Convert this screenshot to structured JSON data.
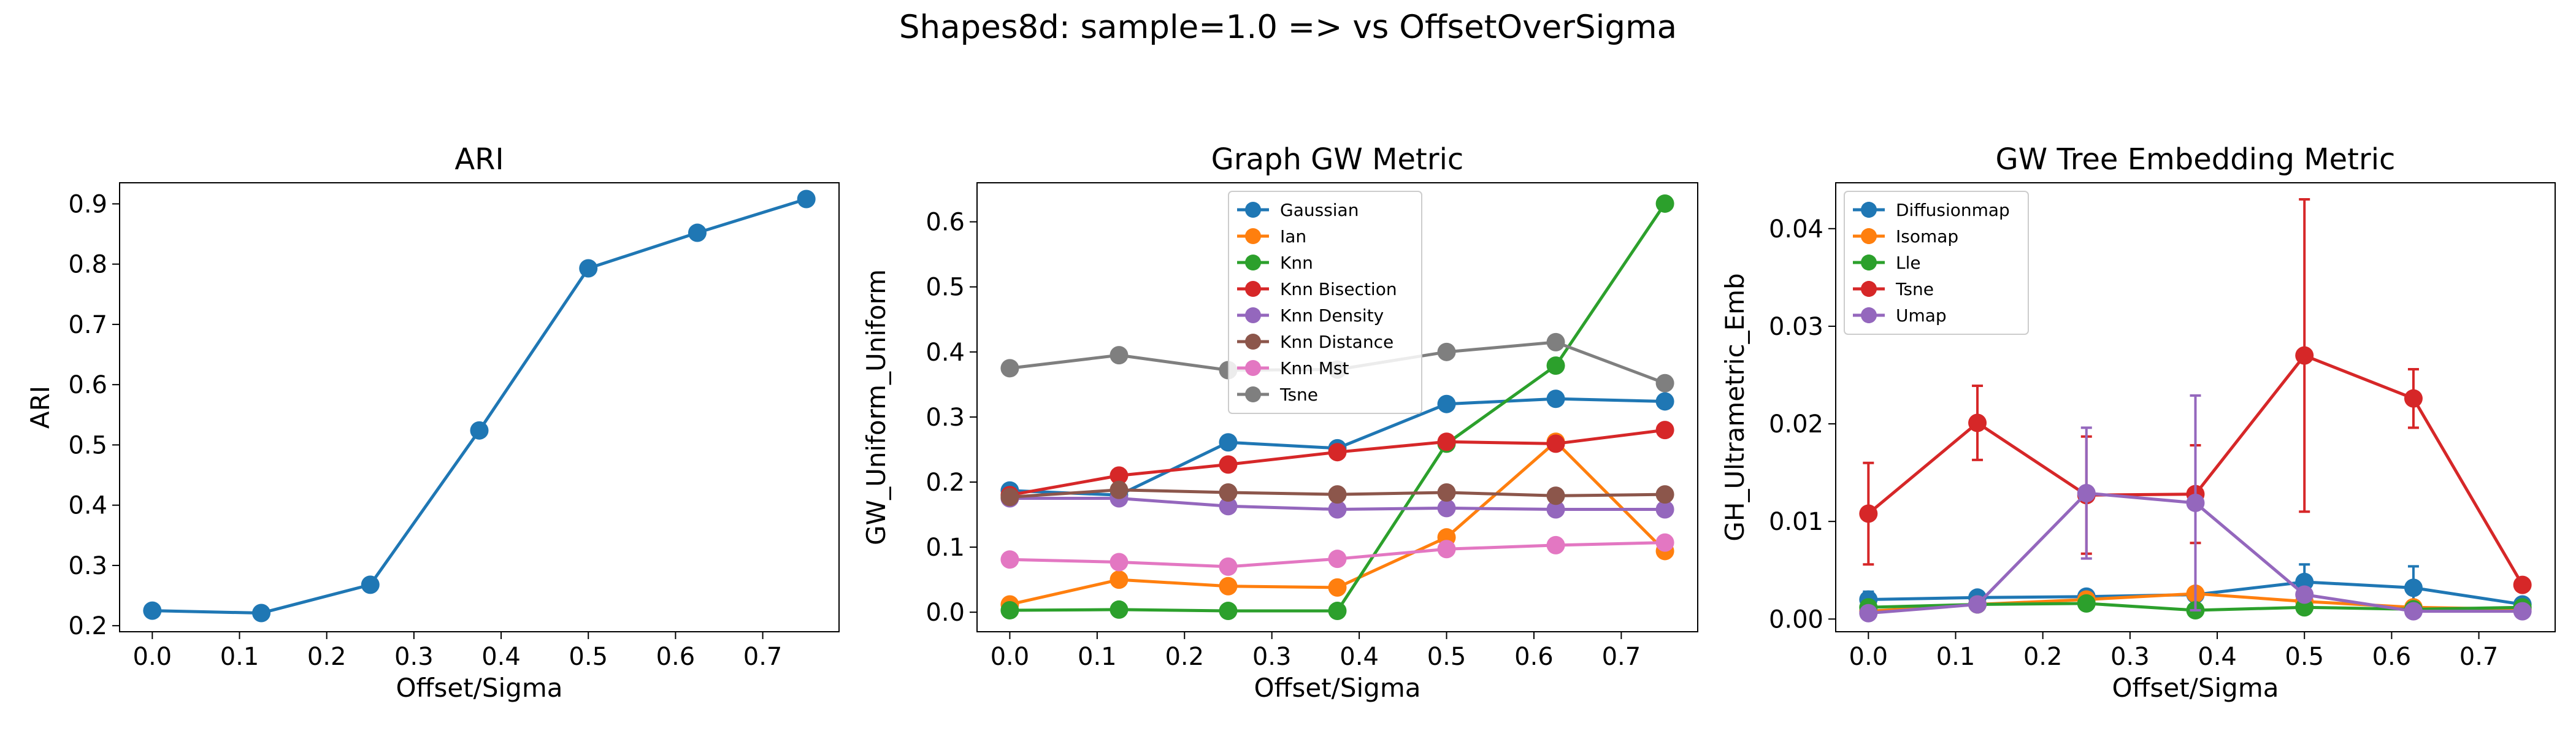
{
  "suptitle": "Shapes8d: sample=1.0 => vs OffsetOverSigma",
  "colors": {
    "tab_blue": "#1f77b4",
    "tab_orange": "#ff7f0e",
    "tab_green": "#2ca02c",
    "tab_red": "#d62728",
    "tab_purple": "#9467bd",
    "tab_brown": "#8c564b",
    "tab_pink": "#e377c2",
    "tab_gray": "#7f7f7f"
  },
  "chart_data": [
    {
      "type": "line",
      "title": "ARI",
      "xlabel": "Offset/Sigma",
      "ylabel": "ARI",
      "xlim": [
        -0.0375,
        0.7875
      ],
      "ylim": [
        0.19,
        0.935
      ],
      "xticks": [
        0.0,
        0.1,
        0.2,
        0.3,
        0.4,
        0.5,
        0.6,
        0.7
      ],
      "yticks": [
        0.2,
        0.3,
        0.4,
        0.5,
        0.6,
        0.7,
        0.8,
        0.9
      ],
      "ytick_decimals": 1,
      "grid": false,
      "legend": null,
      "x": [
        0.0,
        0.125,
        0.25,
        0.375,
        0.5,
        0.625,
        0.75
      ],
      "series": [
        {
          "color": "#1f77b4",
          "values": [
            0.225,
            0.221,
            0.268,
            0.524,
            0.793,
            0.852,
            0.908
          ]
        }
      ]
    },
    {
      "type": "line",
      "title": "Graph GW Metric",
      "xlabel": "Offset/Sigma",
      "ylabel": "GW_Uniform_Uniform",
      "xlim": [
        -0.0375,
        0.7875
      ],
      "ylim": [
        -0.03,
        0.66
      ],
      "xticks": [
        0.0,
        0.1,
        0.2,
        0.3,
        0.4,
        0.5,
        0.6,
        0.7
      ],
      "yticks": [
        0.0,
        0.1,
        0.2,
        0.3,
        0.4,
        0.5,
        0.6
      ],
      "ytick_decimals": 1,
      "grid": false,
      "legend": "upper-center",
      "x": [
        0.0,
        0.125,
        0.25,
        0.375,
        0.5,
        0.625,
        0.75
      ],
      "series": [
        {
          "name": "Gaussian",
          "color": "#1f77b4",
          "values": [
            0.187,
            0.18,
            0.261,
            0.252,
            0.32,
            0.328,
            0.324
          ]
        },
        {
          "name": "Ian",
          "color": "#ff7f0e",
          "values": [
            0.012,
            0.05,
            0.04,
            0.038,
            0.115,
            0.262,
            0.094
          ]
        },
        {
          "name": "Knn",
          "color": "#2ca02c",
          "values": [
            0.003,
            0.004,
            0.002,
            0.002,
            0.259,
            0.379,
            0.628
          ]
        },
        {
          "name": "Knn Bisection",
          "color": "#d62728",
          "values": [
            0.18,
            0.21,
            0.227,
            0.246,
            0.262,
            0.259,
            0.28
          ]
        },
        {
          "name": "Knn Density",
          "color": "#9467bd",
          "values": [
            0.175,
            0.175,
            0.163,
            0.158,
            0.16,
            0.158,
            0.158
          ]
        },
        {
          "name": "Knn Distance",
          "color": "#8c564b",
          "values": [
            0.177,
            0.188,
            0.184,
            0.181,
            0.184,
            0.179,
            0.181
          ]
        },
        {
          "name": "Knn Mst",
          "color": "#e377c2",
          "values": [
            0.081,
            0.077,
            0.07,
            0.082,
            0.097,
            0.103,
            0.107
          ]
        },
        {
          "name": "Tsne",
          "color": "#7f7f7f",
          "values": [
            0.375,
            0.395,
            0.372,
            0.373,
            0.4,
            0.415,
            0.352
          ]
        }
      ]
    },
    {
      "type": "line",
      "title": "GW Tree Embedding Metric",
      "xlabel": "Offset/Sigma",
      "ylabel": "GH_Ultrametric_Emb",
      "xlim": [
        -0.0375,
        0.7875
      ],
      "ylim": [
        -0.0013,
        0.0447
      ],
      "xticks": [
        0.0,
        0.1,
        0.2,
        0.3,
        0.4,
        0.5,
        0.6,
        0.7
      ],
      "yticks": [
        0.0,
        0.01,
        0.02,
        0.03,
        0.04
      ],
      "ytick_decimals": 2,
      "grid": false,
      "legend": "upper-left",
      "x": [
        0.0,
        0.125,
        0.25,
        0.375,
        0.5,
        0.625,
        0.75
      ],
      "series": [
        {
          "name": "Diffusionmap",
          "color": "#1f77b4",
          "values": [
            0.002,
            0.0022,
            0.0023,
            0.0025,
            0.0038,
            0.0032,
            0.0015
          ],
          "err": [
            0.0008,
            0.0006,
            0.0005,
            0.0006,
            0.0018,
            0.0022,
            0.0005
          ]
        },
        {
          "name": "Isomap",
          "color": "#ff7f0e",
          "values": [
            0.0008,
            0.0015,
            0.002,
            0.0026,
            0.0018,
            0.0012,
            0.001
          ],
          "err": [
            0.0002,
            0.0003,
            0.0004,
            0.0004,
            0.0003,
            0.0003,
            0.0002
          ]
        },
        {
          "name": "Lle",
          "color": "#2ca02c",
          "values": [
            0.0012,
            0.0015,
            0.0016,
            0.0009,
            0.0012,
            0.001,
            0.0012
          ],
          "err": [
            0.0002,
            0.0002,
            0.0002,
            0.0002,
            0.0002,
            0.0002,
            0.0002
          ]
        },
        {
          "name": "Tsne",
          "color": "#d62728",
          "values": [
            0.0108,
            0.0201,
            0.0127,
            0.0128,
            0.027,
            0.0226,
            0.0035
          ],
          "err": [
            0.0052,
            0.0038,
            0.006,
            0.005,
            0.016,
            0.003,
            0.0005
          ]
        },
        {
          "name": "Umap",
          "color": "#9467bd",
          "values": [
            0.0006,
            0.0015,
            0.0129,
            0.0119,
            0.0025,
            0.0008,
            0.0008
          ],
          "err": [
            0.0003,
            0.0004,
            0.0067,
            0.011,
            0.0006,
            0.0003,
            0.0003
          ]
        }
      ]
    }
  ]
}
